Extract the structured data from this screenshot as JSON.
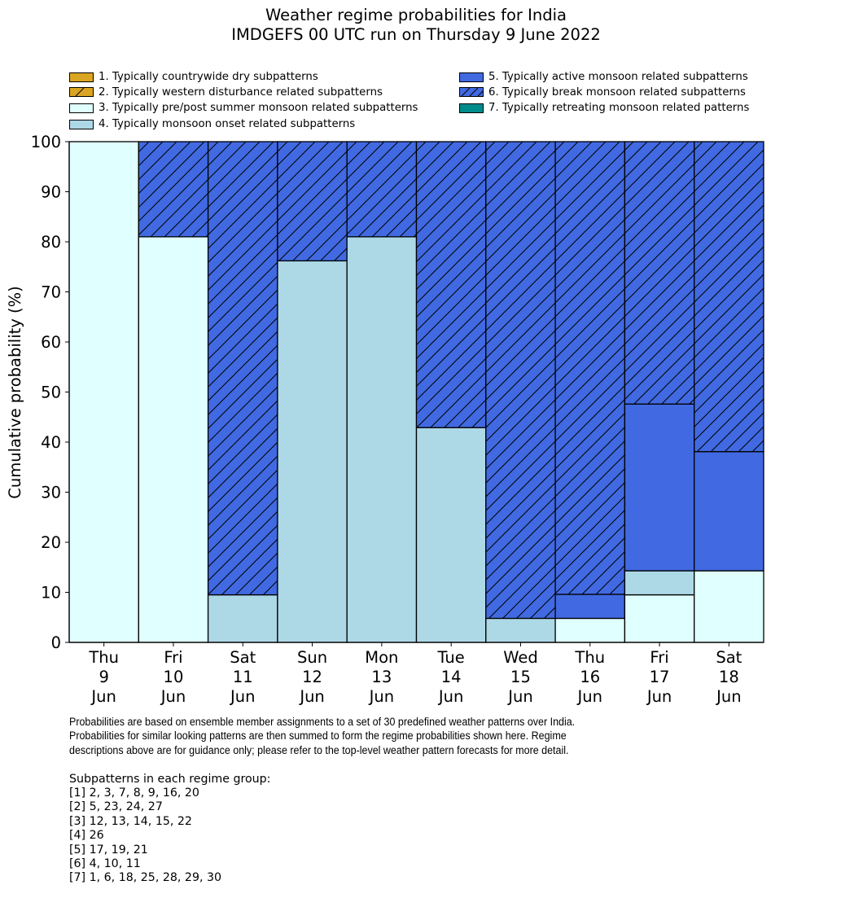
{
  "chart_data": {
    "type": "bar",
    "stacked": true,
    "title": "Weather regime probabilities for India",
    "subtitle": "IMDGEFS 00 UTC run on Thursday 9 June 2022",
    "xlabel": "",
    "ylabel": "Cumulative probability (%)",
    "ylim": [
      0,
      100
    ],
    "yticks": [
      0,
      10,
      20,
      30,
      40,
      50,
      60,
      70,
      80,
      90,
      100
    ],
    "grid": false,
    "legend_position": "top",
    "categories": [
      [
        "Thu",
        "9",
        "Jun"
      ],
      [
        "Fri",
        "10",
        "Jun"
      ],
      [
        "Sat",
        "11",
        "Jun"
      ],
      [
        "Sun",
        "12",
        "Jun"
      ],
      [
        "Mon",
        "13",
        "Jun"
      ],
      [
        "Tue",
        "14",
        "Jun"
      ],
      [
        "Wed",
        "15",
        "Jun"
      ],
      [
        "Thu",
        "16",
        "Jun"
      ],
      [
        "Fri",
        "17",
        "Jun"
      ],
      [
        "Sat",
        "18",
        "Jun"
      ]
    ],
    "series": [
      {
        "name": "1. Typically countrywide dry subpatterns",
        "color": "#daa520",
        "hatch": false,
        "values": [
          0,
          0,
          0,
          0,
          0,
          0,
          0,
          0,
          0,
          0
        ]
      },
      {
        "name": "2. Typically western disturbance related subpatterns",
        "color": "#daa520",
        "hatch": true,
        "values": [
          0,
          0,
          0,
          0,
          0,
          0,
          0,
          0,
          0,
          0
        ]
      },
      {
        "name": "3. Typically pre/post summer monsoon related subpatterns",
        "color": "#e0ffff",
        "hatch": false,
        "values": [
          100,
          81.0,
          0,
          0,
          0,
          0,
          0,
          4.8,
          9.5,
          14.3
        ]
      },
      {
        "name": "4. Typically monsoon onset related subpatterns",
        "color": "#add8e6",
        "hatch": false,
        "values": [
          0,
          0,
          9.5,
          76.2,
          81.0,
          42.9,
          4.8,
          0,
          4.8,
          0
        ]
      },
      {
        "name": "5. Typically active monsoon related subpatterns",
        "color": "#4169e1",
        "hatch": false,
        "values": [
          0,
          0,
          0,
          0,
          0,
          0,
          0,
          4.8,
          33.3,
          23.8
        ]
      },
      {
        "name": "6. Typically break monsoon related subpatterns",
        "color": "#4169e1",
        "hatch": true,
        "values": [
          0,
          19.0,
          90.5,
          23.8,
          19.0,
          57.1,
          95.2,
          90.4,
          52.4,
          61.9
        ]
      },
      {
        "name": "7. Typically retreating monsoon related patterns",
        "color": "#008b8b",
        "hatch": false,
        "values": [
          0,
          0,
          0,
          0,
          0,
          0,
          0,
          0,
          0,
          0
        ]
      }
    ]
  },
  "footnote": {
    "lines": [
      "Probabilities are based on ensemble member assignments to a set of 30 predefined weather patterns over India.",
      "Probabilities for similar looking patterns are then summed to form the regime probabilities shown here. Regime",
      "descriptions above are for guidance only; please refer to the top-level weather pattern forecasts for more detail."
    ]
  },
  "groups": {
    "heading": "Subpatterns in each regime group:",
    "items": [
      "[1] 2, 3, 7, 8, 9, 16, 20",
      "[2] 5, 23, 24, 27",
      "[3] 12, 13, 14, 15, 22",
      "[4] 26",
      "[5] 17, 19, 21",
      "[6] 4, 10, 11",
      "[7] 1, 6, 18, 25, 28, 29, 30"
    ]
  }
}
